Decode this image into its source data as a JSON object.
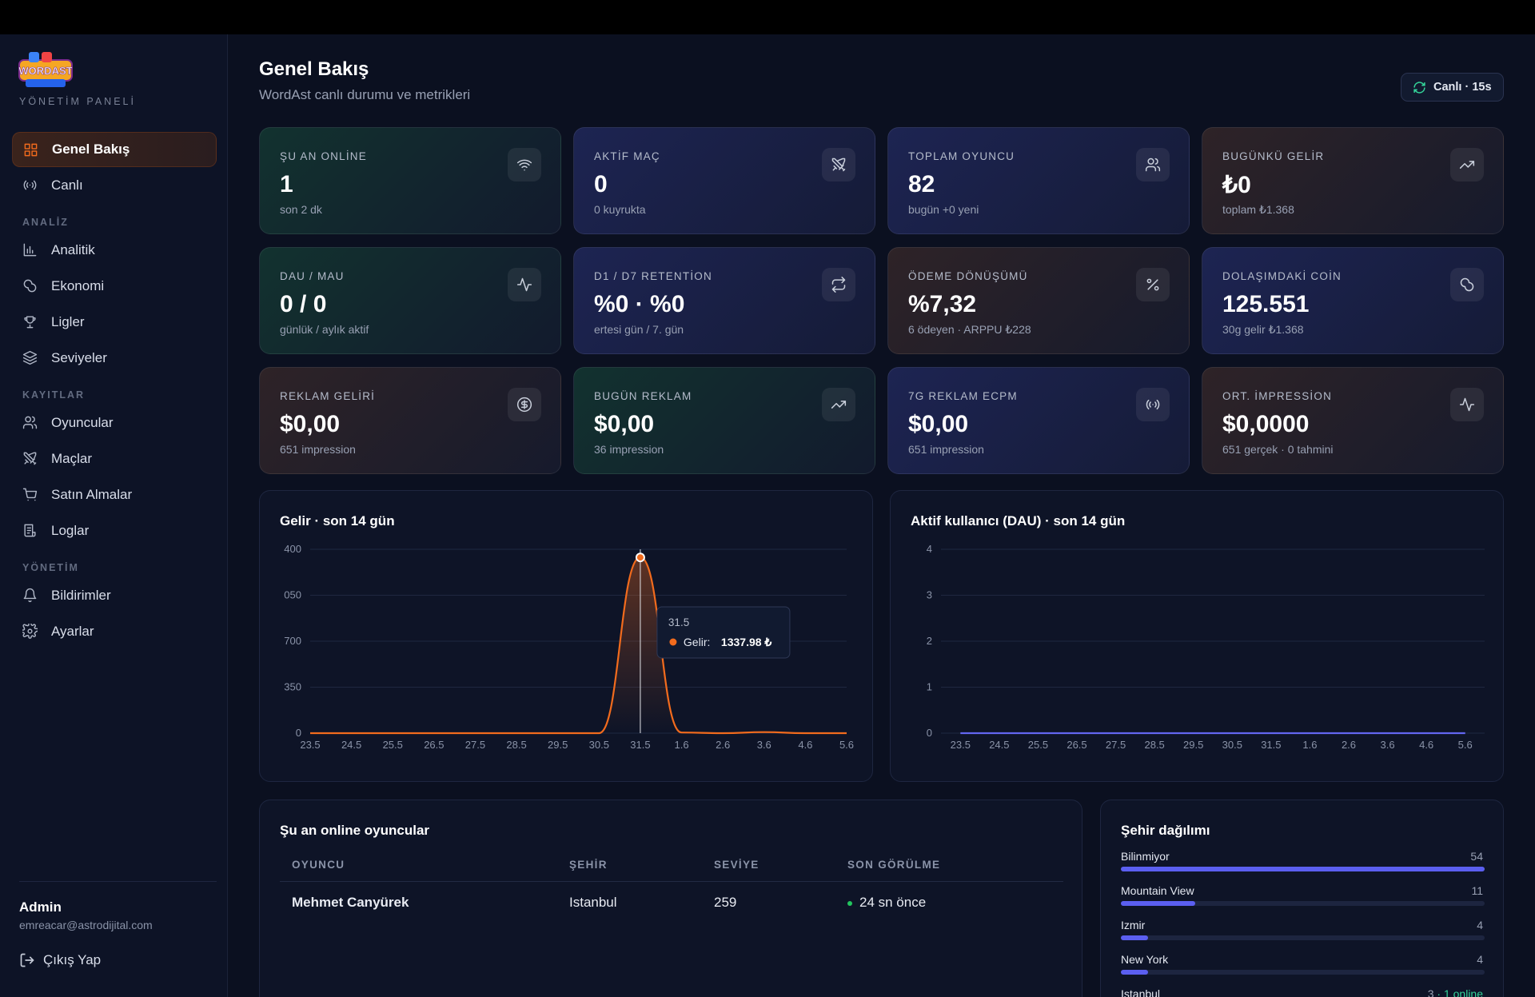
{
  "sidebar": {
    "logo_text": "WORDAST",
    "panel_label": "YÖNETİM PANELİ",
    "nav_top": [
      "Genel Bakış",
      "Canlı"
    ],
    "nav_groups": [
      {
        "title": "ANALİZ",
        "items": [
          "Analitik",
          "Ekonomi",
          "Ligler",
          "Seviyeler"
        ]
      },
      {
        "title": "KAYITLAR",
        "items": [
          "Oyuncular",
          "Maçlar",
          "Satın Almalar",
          "Loglar"
        ]
      },
      {
        "title": "YÖNETİM",
        "items": [
          "Bildirimler",
          "Ayarlar"
        ]
      }
    ],
    "user": {
      "name": "Admin",
      "email": "emreacar@astrodijital.com"
    },
    "logout": "Çıkış Yap"
  },
  "header": {
    "title": "Genel Bakış",
    "subtitle": "WordAst canlı durumu ve metrikleri",
    "live_button": "Canlı · 15s"
  },
  "cards": [
    {
      "label": "ŞU AN ONLİNE",
      "value": "1",
      "sub": "son 2 dk"
    },
    {
      "label": "AKTİF MAÇ",
      "value": "0",
      "sub": "0 kuyrukta"
    },
    {
      "label": "TOPLAM OYUNCU",
      "value": "82",
      "sub": "bugün +0 yeni"
    },
    {
      "label": "BUGÜNKÜ GELİR",
      "value": "₺0",
      "sub": "toplam ₺1.368"
    },
    {
      "label": "DAU / MAU",
      "value": "0 / 0",
      "sub": "günlük / aylık aktif"
    },
    {
      "label": "D1 / D7 RETENTİON",
      "value": "%0 · %0",
      "sub": "ertesi gün / 7. gün"
    },
    {
      "label": "ÖDEME DÖNÜŞÜMÜ",
      "value": "%7,32",
      "sub": "6 ödeyen · ARPPU ₺228"
    },
    {
      "label": "DOLAŞIMDAKİ COİN",
      "value": "125.551",
      "sub": "30g gelir ₺1.368"
    },
    {
      "label": "REKLAM GELİRİ",
      "value": "$0,00",
      "sub": "651 impression"
    },
    {
      "label": "BUGÜN REKLAM",
      "value": "$0,00",
      "sub": "36 impression"
    },
    {
      "label": "7G REKLAM ECPM",
      "value": "$0,00",
      "sub": "651 impression"
    },
    {
      "label": "ORT. İMPRESSİON",
      "value": "$0,0000",
      "sub": "651 gerçek · 0 tahmini"
    }
  ],
  "charts": [
    {
      "type": "line",
      "title": "Gelir · son 14 gün",
      "categories": [
        "23.5",
        "24.5",
        "25.5",
        "26.5",
        "27.5",
        "28.5",
        "29.5",
        "30.5",
        "31.5",
        "1.6",
        "2.6",
        "3.6",
        "4.6",
        "5.6"
      ],
      "values": [
        0,
        0,
        0,
        0,
        0,
        0,
        0,
        0,
        1337.98,
        5,
        0,
        8,
        0,
        0
      ],
      "color": "#f26b1d",
      "ylim": [
        0,
        1400
      ],
      "yticks": [
        0,
        350,
        700,
        {
          "value": 1050,
          "label": "050"
        },
        {
          "value": 1400,
          "label": "400"
        }
      ],
      "grid": true,
      "tooltip": {
        "category": "31.5",
        "series_label": "Gelir:",
        "value_label": "1337.98 ₺"
      }
    },
    {
      "type": "line",
      "title": "Aktif kullanıcı (DAU) · son 14 gün",
      "categories": [
        "23.5",
        "24.5",
        "25.5",
        "26.5",
        "27.5",
        "28.5",
        "29.5",
        "30.5",
        "31.5",
        "1.6",
        "2.6",
        "3.6",
        "4.6",
        "5.6"
      ],
      "values": [
        0,
        0,
        0,
        0,
        0,
        0,
        0,
        0,
        0,
        0,
        0,
        0,
        0,
        0
      ],
      "color": "#6366f1",
      "ylim": [
        0,
        4
      ],
      "yticks": [
        0,
        1,
        2,
        3,
        4
      ],
      "grid": true
    }
  ],
  "online_table": {
    "title": "Şu an online oyuncular",
    "columns": [
      "OYUNCU",
      "ŞEHİR",
      "SEVİYE",
      "SON GÖRÜLME"
    ],
    "rows": [
      [
        "Mehmet Canyürek",
        "Istanbul",
        "259",
        "24 sn önce"
      ]
    ]
  },
  "cities": {
    "title": "Şehir dağılımı",
    "rows": [
      {
        "name": "Bilinmiyor",
        "count": 54
      },
      {
        "name": "Mountain View",
        "count": 11
      },
      {
        "name": "Izmir",
        "count": 4
      },
      {
        "name": "New York",
        "count": 4
      },
      {
        "name": "Istanbul",
        "count": 3,
        "note": "· 1 online"
      }
    ]
  }
}
